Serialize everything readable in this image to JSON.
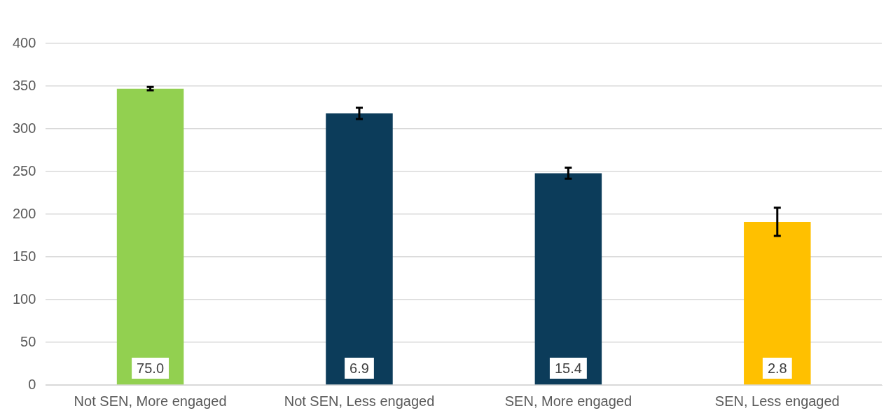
{
  "chart_data": {
    "type": "bar",
    "categories": [
      "Not SEN, More engaged",
      "Not SEN, Less engaged",
      "SEN, More engaged",
      "SEN, Less engaged"
    ],
    "values": [
      347,
      318,
      248,
      191
    ],
    "colors": [
      "#92d050",
      "#0c3c5a",
      "#0c3c5a",
      "#ffc000"
    ],
    "errors": [
      2,
      6.5,
      6.5,
      16.5
    ],
    "annotations": [
      "75.0",
      "6.9",
      "15.4",
      "2.8"
    ],
    "ylim": [
      0,
      400
    ],
    "yticks": [
      0,
      50,
      100,
      150,
      200,
      250,
      300,
      350,
      400
    ],
    "grid": "y",
    "legend": false
  }
}
